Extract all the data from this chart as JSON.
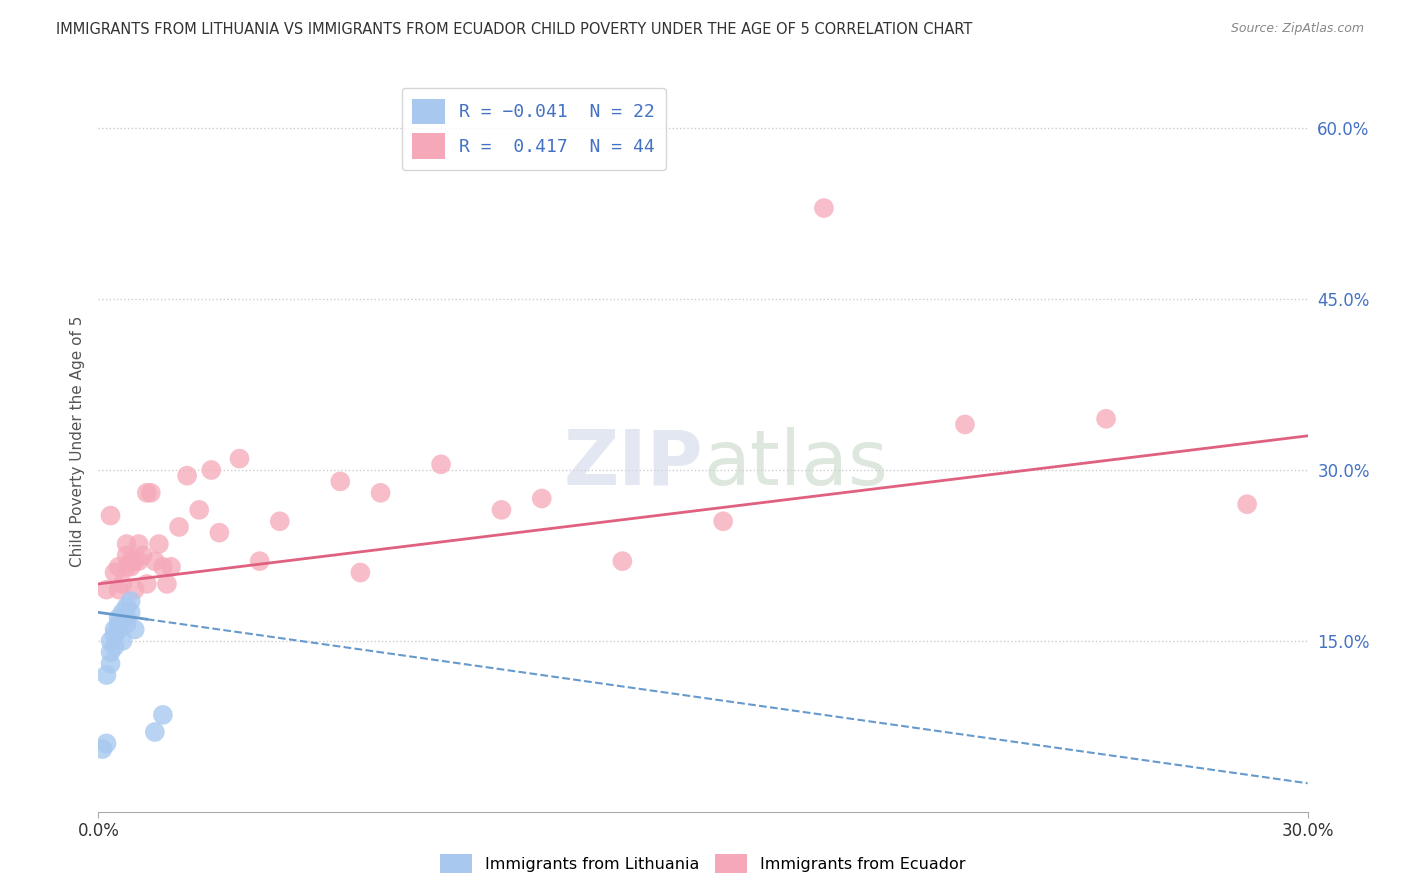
{
  "title": "IMMIGRANTS FROM LITHUANIA VS IMMIGRANTS FROM ECUADOR CHILD POVERTY UNDER THE AGE OF 5 CORRELATION CHART",
  "source": "Source: ZipAtlas.com",
  "ylabel": "Child Poverty Under the Age of 5",
  "xlim": [
    0.0,
    0.3
  ],
  "ylim": [
    0.0,
    0.65
  ],
  "xtick_vals": [
    0.0,
    0.3
  ],
  "xtick_labels": [
    "0.0%",
    "30.0%"
  ],
  "ytick_vals": [
    0.15,
    0.3,
    0.45,
    0.6
  ],
  "ytick_labels": [
    "15.0%",
    "30.0%",
    "45.0%",
    "60.0%"
  ],
  "color_lithuania": "#a8c8f0",
  "color_ecuador": "#f5a8b8",
  "line_color_lithuania": "#6699cc",
  "line_color_ecuador": "#e06080",
  "lit_x": [
    0.001,
    0.002,
    0.002,
    0.003,
    0.003,
    0.003,
    0.004,
    0.004,
    0.004,
    0.005,
    0.005,
    0.005,
    0.006,
    0.006,
    0.007,
    0.007,
    0.007,
    0.008,
    0.008,
    0.009,
    0.014,
    0.016
  ],
  "lit_y": [
    0.055,
    0.06,
    0.12,
    0.13,
    0.14,
    0.15,
    0.145,
    0.155,
    0.16,
    0.16,
    0.165,
    0.17,
    0.175,
    0.15,
    0.165,
    0.17,
    0.18,
    0.175,
    0.185,
    0.16,
    0.07,
    0.085
  ],
  "ecu_x": [
    0.002,
    0.003,
    0.004,
    0.005,
    0.005,
    0.006,
    0.007,
    0.007,
    0.007,
    0.008,
    0.008,
    0.009,
    0.009,
    0.01,
    0.01,
    0.011,
    0.012,
    0.012,
    0.013,
    0.014,
    0.015,
    0.016,
    0.017,
    0.018,
    0.02,
    0.022,
    0.025,
    0.028,
    0.03,
    0.035,
    0.04,
    0.045,
    0.06,
    0.065,
    0.07,
    0.085,
    0.1,
    0.11,
    0.13,
    0.155,
    0.18,
    0.215,
    0.25,
    0.285
  ],
  "ecu_y": [
    0.195,
    0.26,
    0.21,
    0.195,
    0.215,
    0.2,
    0.215,
    0.225,
    0.235,
    0.22,
    0.215,
    0.195,
    0.22,
    0.22,
    0.235,
    0.225,
    0.2,
    0.28,
    0.28,
    0.22,
    0.235,
    0.215,
    0.2,
    0.215,
    0.25,
    0.295,
    0.265,
    0.3,
    0.245,
    0.31,
    0.22,
    0.255,
    0.29,
    0.21,
    0.28,
    0.305,
    0.265,
    0.275,
    0.22,
    0.255,
    0.53,
    0.34,
    0.345,
    0.27
  ],
  "ecu_line_x0": 0.0,
  "ecu_line_y0": 0.2,
  "ecu_line_x1": 0.3,
  "ecu_line_y1": 0.33,
  "lit_line_x0": 0.0,
  "lit_line_y0": 0.175,
  "lit_line_x1": 0.3,
  "lit_line_y1": 0.025
}
